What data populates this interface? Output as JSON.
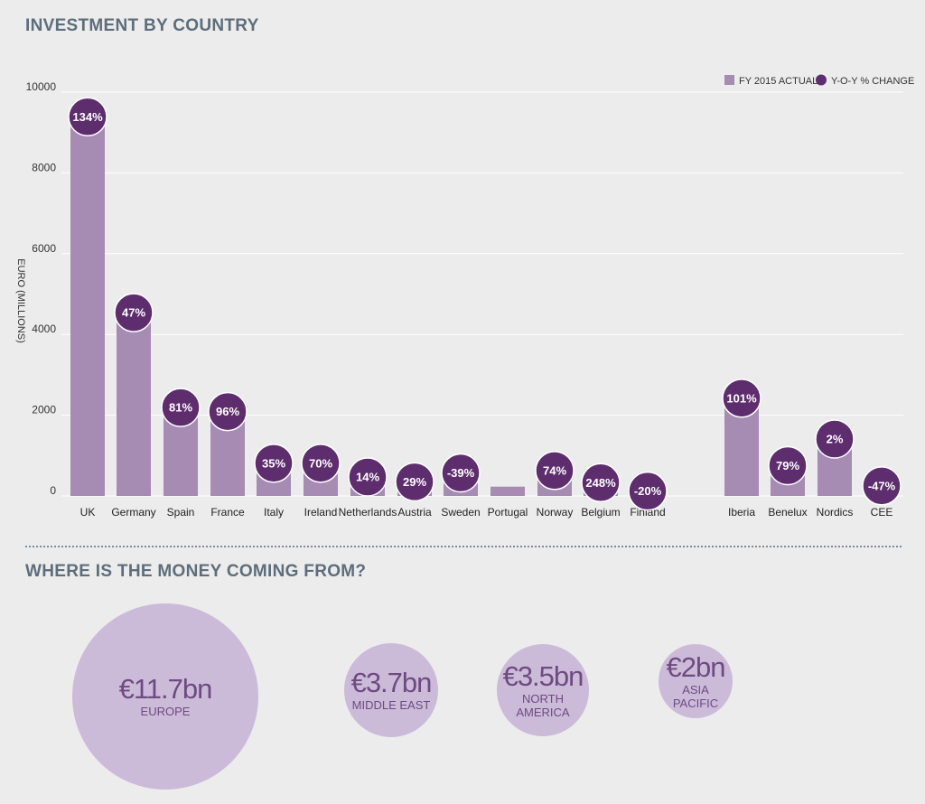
{
  "title": "INVESTMENT BY COUNTRY",
  "subtitle": "WHERE IS THE MONEY COMING FROM?",
  "chart_data": {
    "type": "bar",
    "ylabel": "EURO (MILLIONS)",
    "xlabel": "",
    "ylim": [
      0,
      10000
    ],
    "yticks": [
      0,
      2000,
      4000,
      6000,
      8000,
      10000
    ],
    "grid": true,
    "legend_position": "top-right",
    "categories": [
      "UK",
      "Germany",
      "Spain",
      "France",
      "Italy",
      "Ireland",
      "Netherlands",
      "Austria",
      "Sweden",
      "Portugal",
      "Norway",
      "Belgium",
      "Finland",
      "Iberia",
      "Benelux",
      "Nordics",
      "CEE"
    ],
    "series": [
      {
        "name": "FY 2015 ACTUAL",
        "color": "#a68bb3",
        "values": [
          9300,
          4450,
          2100,
          2000,
          720,
          720,
          380,
          260,
          480,
          230,
          540,
          240,
          30,
          2330,
          660,
          1320,
          160
        ]
      },
      {
        "name": "Y-O-Y % CHANGE",
        "color": "#5e2d6e",
        "labels": [
          "134%",
          "47%",
          "81%",
          "96%",
          "35%",
          "70%",
          "14%",
          "29%",
          "-39%",
          "",
          "74%",
          "248%",
          "-20%",
          "101%",
          "79%",
          "2%",
          "-47%"
        ]
      }
    ]
  },
  "bubbles": [
    {
      "value": "€11.7bn",
      "label": "EUROPE"
    },
    {
      "value": "€3.7bn",
      "label": "MIDDLE EAST"
    },
    {
      "value": "€3.5bn",
      "label": "NORTH AMERICA"
    },
    {
      "value": "€2bn",
      "label": "ASIA PACIFIC"
    }
  ]
}
